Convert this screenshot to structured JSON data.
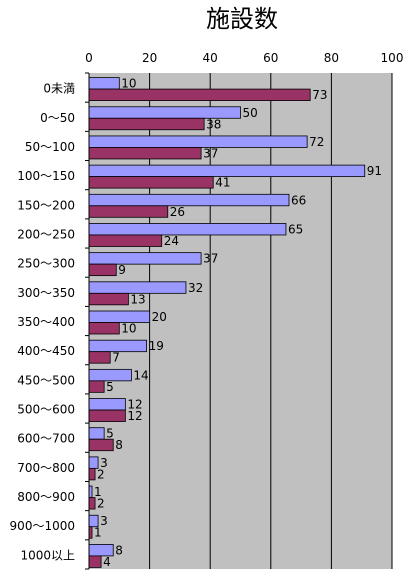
{
  "chart_data": {
    "type": "bar",
    "orientation": "horizontal",
    "title": "施設数",
    "xlim": [
      0,
      100
    ],
    "xticks": [
      0,
      20,
      40,
      60,
      80,
      100
    ],
    "grid": true,
    "legend": "none",
    "categories": [
      "0未満",
      "0～50",
      "50～100",
      "100～150",
      "150～200",
      "200～250",
      "250～300",
      "300～350",
      "350～400",
      "400～450",
      "450～500",
      "500～600",
      "600～700",
      "700～800",
      "800～900",
      "900～1000",
      "1000以上"
    ],
    "series": [
      {
        "values": [
          10,
          50,
          72,
          91,
          66,
          65,
          37,
          32,
          20,
          19,
          14,
          12,
          5,
          3,
          1,
          3,
          8
        ],
        "color": "#9999FF"
      },
      {
        "values": [
          73,
          38,
          37,
          41,
          26,
          24,
          9,
          13,
          10,
          7,
          5,
          12,
          8,
          2,
          2,
          1,
          4
        ],
        "color": "#993366"
      }
    ],
    "plot_background": "#C0C0C0",
    "gridline_color": "#000000"
  }
}
